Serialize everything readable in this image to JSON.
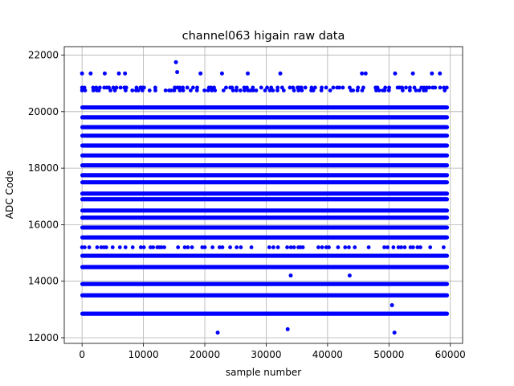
{
  "chart_data": {
    "type": "scatter",
    "title": "channel063 higain raw data",
    "xlabel": "sample number",
    "ylabel": "ADC Code",
    "xlim": [
      -2900,
      62000
    ],
    "ylim": [
      11800,
      22300
    ],
    "xticks": [
      0,
      10000,
      20000,
      30000,
      40000,
      50000,
      60000
    ],
    "yticks": [
      12000,
      14000,
      16000,
      18000,
      20000,
      22000
    ],
    "grid": true,
    "marker_color": "#0000ff",
    "x_extent": [
      0,
      59500
    ],
    "bands": [
      {
        "y": 12850,
        "density": "dense"
      },
      {
        "y": 13500,
        "density": "dense"
      },
      {
        "y": 13900,
        "density": "dense"
      },
      {
        "y": 14500,
        "density": "dense"
      },
      {
        "y": 14900,
        "density": "dense"
      },
      {
        "y": 15200,
        "density": "sparse"
      },
      {
        "y": 15550,
        "density": "dense"
      },
      {
        "y": 15900,
        "density": "dense"
      },
      {
        "y": 16250,
        "density": "dense"
      },
      {
        "y": 16500,
        "density": "dense"
      },
      {
        "y": 16900,
        "density": "dense"
      },
      {
        "y": 17100,
        "density": "dense"
      },
      {
        "y": 17500,
        "density": "dense"
      },
      {
        "y": 17750,
        "density": "dense"
      },
      {
        "y": 18100,
        "density": "dense"
      },
      {
        "y": 18450,
        "density": "dense"
      },
      {
        "y": 18800,
        "density": "dense"
      },
      {
        "y": 19150,
        "density": "dense"
      },
      {
        "y": 19450,
        "density": "dense"
      },
      {
        "y": 19800,
        "density": "dense"
      },
      {
        "y": 20150,
        "density": "dense"
      },
      {
        "y": 20750,
        "density": "sparse"
      },
      {
        "y": 20850,
        "density": "sparse"
      }
    ],
    "outliers": [
      {
        "x": 0,
        "y": 21350
      },
      {
        "x": 1400,
        "y": 21350
      },
      {
        "x": 3700,
        "y": 21350
      },
      {
        "x": 6000,
        "y": 21350
      },
      {
        "x": 7000,
        "y": 21350
      },
      {
        "x": 15300,
        "y": 21750
      },
      {
        "x": 15500,
        "y": 21400
      },
      {
        "x": 19300,
        "y": 21350
      },
      {
        "x": 22800,
        "y": 21350
      },
      {
        "x": 27000,
        "y": 21350
      },
      {
        "x": 32300,
        "y": 21350
      },
      {
        "x": 45600,
        "y": 21350
      },
      {
        "x": 46200,
        "y": 21350
      },
      {
        "x": 51000,
        "y": 21350
      },
      {
        "x": 53900,
        "y": 21350
      },
      {
        "x": 57000,
        "y": 21350
      },
      {
        "x": 58300,
        "y": 21350
      },
      {
        "x": 22100,
        "y": 12180
      },
      {
        "x": 33500,
        "y": 12300
      },
      {
        "x": 50900,
        "y": 12180
      },
      {
        "x": 50500,
        "y": 13150
      },
      {
        "x": 34000,
        "y": 14200
      },
      {
        "x": 43600,
        "y": 14200
      }
    ]
  }
}
